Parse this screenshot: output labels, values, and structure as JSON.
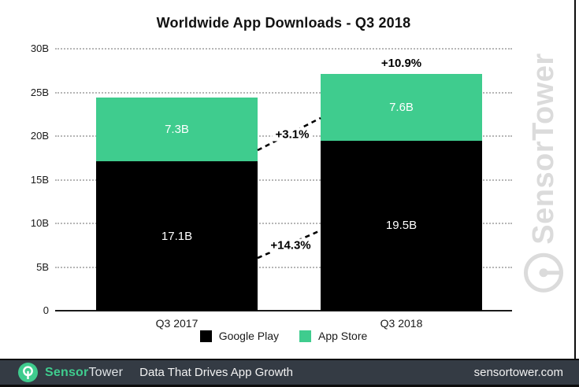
{
  "title": "Worldwide App Downloads - Q3 2018",
  "colors": {
    "google_play": "#000000",
    "app_store": "#3fcc8e",
    "grid": "#b6b6b6",
    "watermark": "#dbdbdb",
    "footer_bg": "#343b44",
    "accent_green": "#3fcc8e"
  },
  "chart_data": {
    "type": "bar",
    "stacked": true,
    "title": "Worldwide App Downloads - Q3 2018",
    "categories": [
      "Q3 2017",
      "Q3 2018"
    ],
    "series": [
      {
        "name": "Google Play",
        "color_key": "google_play",
        "values": [
          17.1,
          19.5
        ],
        "value_labels": [
          "17.1B",
          "19.5B"
        ]
      },
      {
        "name": "App Store",
        "color_key": "app_store",
        "values": [
          7.3,
          7.6
        ],
        "value_labels": [
          "7.3B",
          "7.6B"
        ]
      }
    ],
    "totals": [
      24.4,
      27.1
    ],
    "y_axis": {
      "tick_labels": [
        "0",
        "5B",
        "10B",
        "15B",
        "20B",
        "25B",
        "30B"
      ],
      "tick_values": [
        0,
        5,
        10,
        15,
        20,
        25,
        30
      ],
      "max": 30,
      "grid": "dotted"
    },
    "legend": {
      "position": "bottom",
      "entries": [
        {
          "label": "Google Play",
          "color_key": "google_play"
        },
        {
          "label": "App Store",
          "color_key": "app_store"
        }
      ]
    },
    "annotations": {
      "total_growth": {
        "label": "+10.9%",
        "category": "Q3 2018"
      },
      "segment_growth": [
        {
          "label": "+3.1%",
          "series": "App Store"
        },
        {
          "label": "+14.3%",
          "series": "Google Play"
        }
      ]
    }
  },
  "watermark": {
    "text": "SensorTower",
    "logo": "sensortower-ring-logo"
  },
  "footer": {
    "brand_sensor": "Sensor",
    "brand_tower": "Tower",
    "tagline": "Data That Drives App Growth",
    "website": "sensortower.com"
  }
}
